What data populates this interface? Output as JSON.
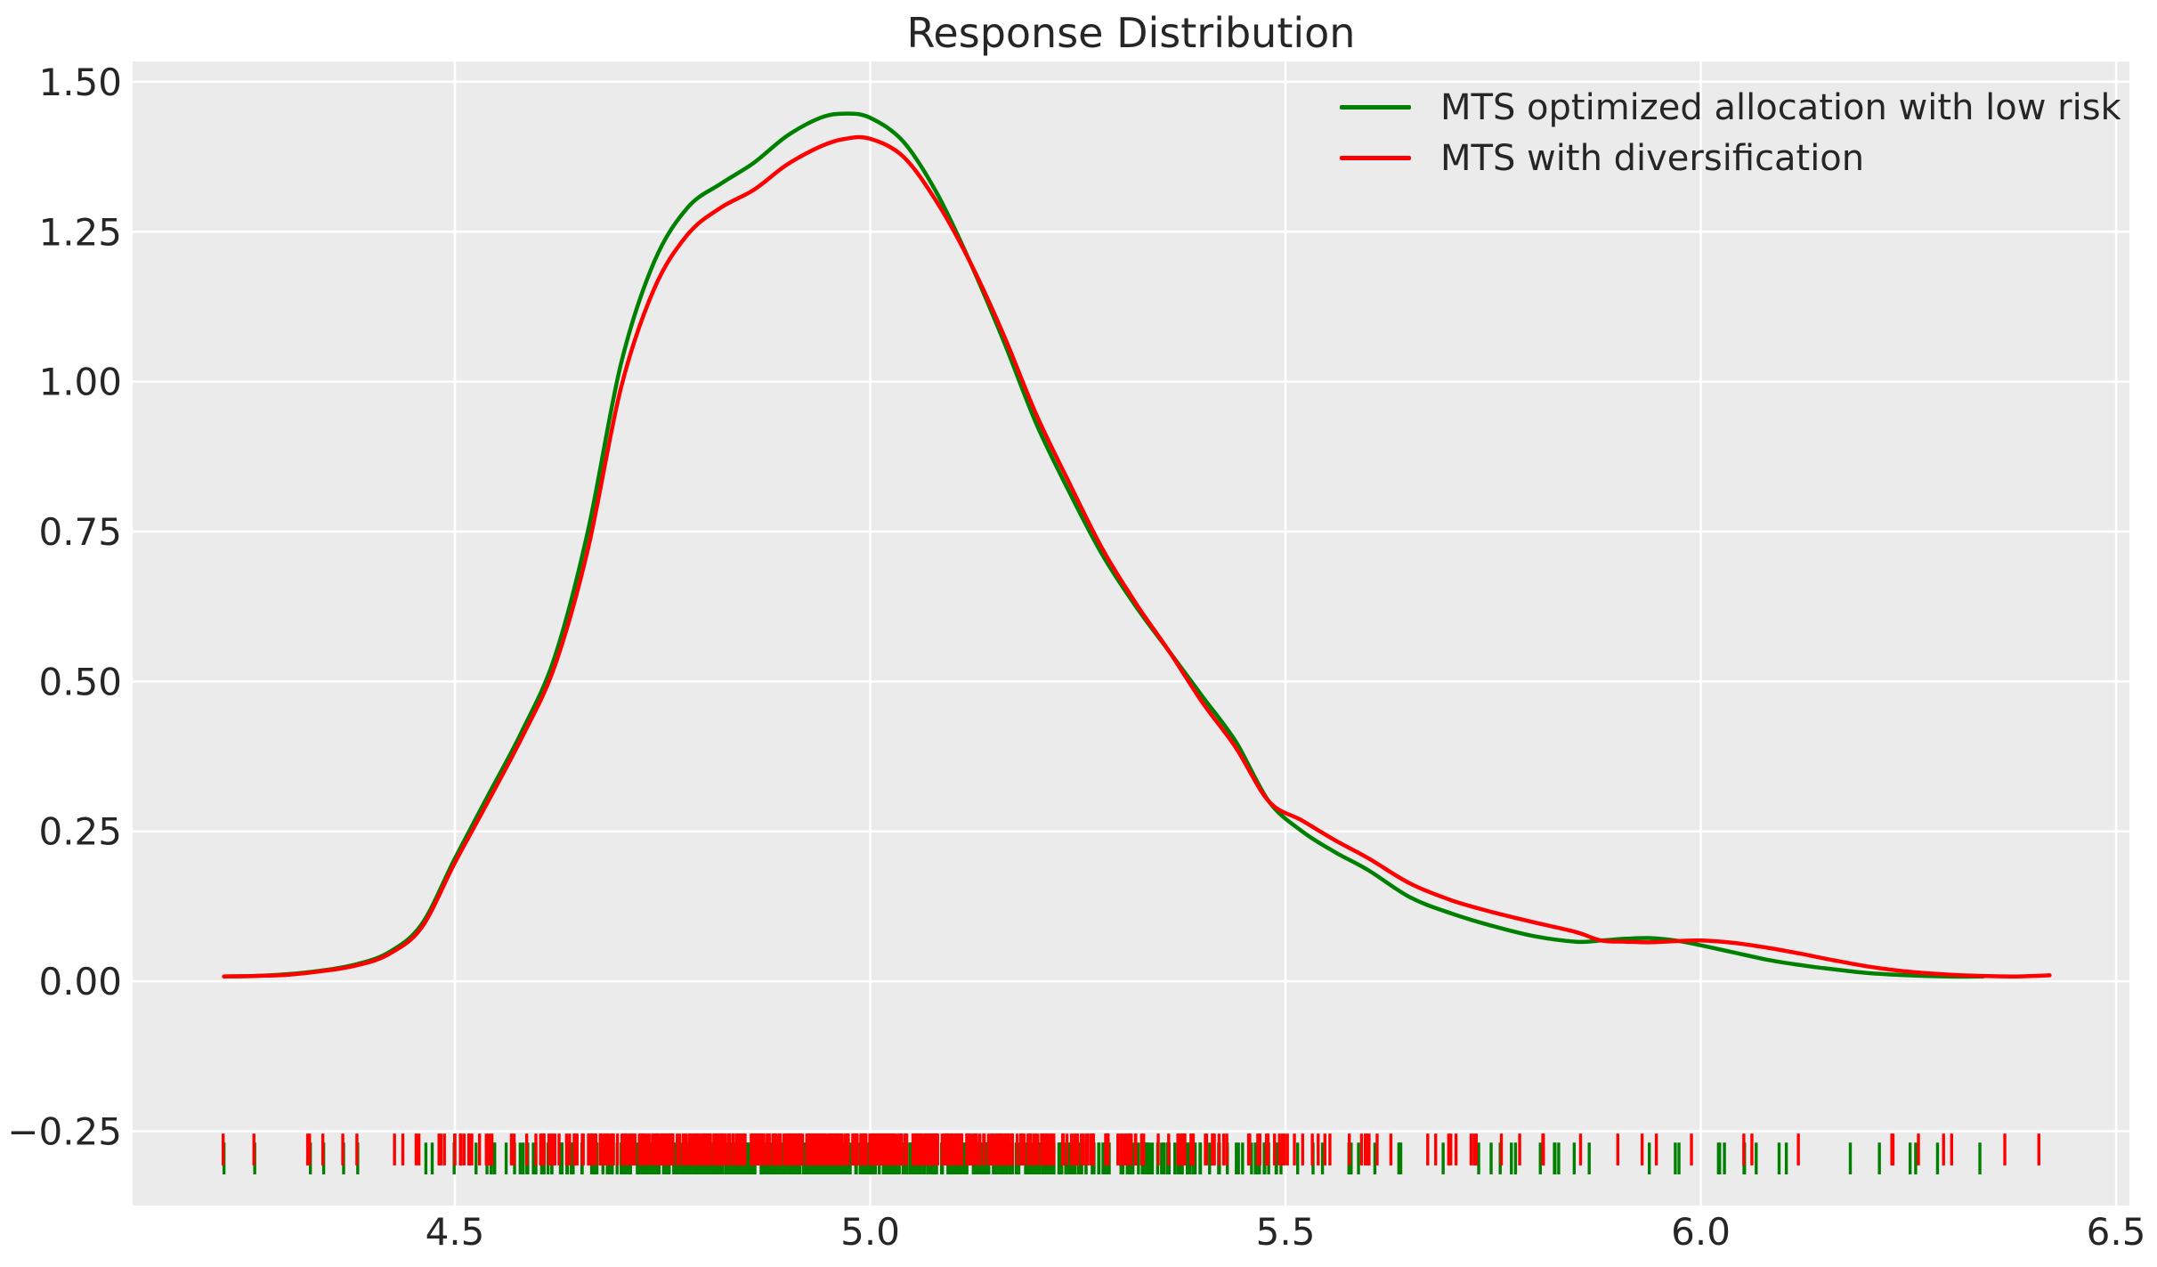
{
  "title": "Response Distribution",
  "colors": {
    "figure_bg": "#ffffff",
    "plot_bg": "#ebebeb",
    "grid": "#ffffff",
    "text": "#262626",
    "green": "#008000",
    "red": "#ff0000"
  },
  "legend": {
    "items": [
      {
        "label": "MTS optimized allocation with low risk",
        "color": "#008000"
      },
      {
        "label": "MTS with diversification",
        "color": "#ff0000"
      }
    ]
  },
  "chart_data": {
    "type": "line",
    "title": "Response Distribution",
    "xlabel": "",
    "ylabel": "",
    "grid": true,
    "legend_position": "upper right",
    "xlim": [
      4.112,
      6.516
    ],
    "ylim": [
      -0.374,
      1.534
    ],
    "x_ticks": [
      4.5,
      5.0,
      5.5,
      6.0,
      6.5
    ],
    "x_tick_labels": [
      "4.5",
      "5.0",
      "5.5",
      "6.0",
      "6.5"
    ],
    "y_ticks": [
      1.5,
      1.25,
      1.0,
      0.75,
      0.5,
      0.25,
      0.0,
      -0.25
    ],
    "y_tick_labels": [
      "1.50",
      "1.25",
      "1.00",
      "0.75",
      "0.50",
      "0.25",
      "0.00",
      "−0.25"
    ],
    "series": [
      {
        "id": "green",
        "name": "MTS optimized allocation with low risk",
        "color": "#008000",
        "peak": {
          "x": 4.97,
          "y": 1.447
        },
        "x": [
          4.222,
          4.26,
          4.3,
          4.34,
          4.38,
          4.42,
          4.46,
          4.5,
          4.54,
          4.58,
          4.62,
          4.66,
          4.7,
          4.74,
          4.78,
          4.82,
          4.86,
          4.9,
          4.94,
          4.97,
          5.0,
          5.04,
          5.08,
          5.12,
          5.16,
          5.2,
          5.24,
          5.28,
          5.32,
          5.36,
          5.4,
          5.44,
          5.48,
          5.52,
          5.56,
          5.6,
          5.65,
          5.7,
          5.75,
          5.8,
          5.85,
          5.88,
          5.91,
          5.94,
          5.97,
          6.0,
          6.04,
          6.08,
          6.12,
          6.16,
          6.2,
          6.25,
          6.3,
          6.34
        ],
        "y": [
          0.008,
          0.009,
          0.012,
          0.018,
          0.028,
          0.048,
          0.095,
          0.205,
          0.31,
          0.415,
          0.54,
          0.75,
          1.03,
          1.2,
          1.29,
          1.33,
          1.365,
          1.41,
          1.44,
          1.447,
          1.44,
          1.4,
          1.315,
          1.2,
          1.07,
          0.93,
          0.815,
          0.71,
          0.625,
          0.55,
          0.475,
          0.4,
          0.3,
          0.25,
          0.215,
          0.185,
          0.14,
          0.113,
          0.092,
          0.075,
          0.066,
          0.068,
          0.071,
          0.072,
          0.068,
          0.06,
          0.048,
          0.036,
          0.027,
          0.02,
          0.014,
          0.01,
          0.008,
          0.008
        ]
      },
      {
        "id": "red",
        "name": "MTS with diversification",
        "color": "#ff0000",
        "peak": {
          "x": 4.98,
          "y": 1.405
        },
        "x": [
          4.222,
          4.26,
          4.3,
          4.34,
          4.38,
          4.42,
          4.46,
          4.5,
          4.54,
          4.58,
          4.62,
          4.66,
          4.7,
          4.74,
          4.78,
          4.82,
          4.86,
          4.9,
          4.94,
          4.97,
          5.0,
          5.04,
          5.08,
          5.12,
          5.16,
          5.2,
          5.24,
          5.28,
          5.32,
          5.36,
          5.4,
          5.44,
          5.48,
          5.52,
          5.56,
          5.6,
          5.65,
          5.7,
          5.75,
          5.8,
          5.85,
          5.88,
          5.91,
          5.94,
          5.97,
          6.0,
          6.04,
          6.08,
          6.12,
          6.16,
          6.2,
          6.25,
          6.3,
          6.34,
          6.38,
          6.42
        ],
        "y": [
          0.008,
          0.009,
          0.011,
          0.017,
          0.026,
          0.045,
          0.09,
          0.198,
          0.3,
          0.405,
          0.525,
          0.72,
          0.99,
          1.155,
          1.245,
          1.29,
          1.32,
          1.362,
          1.392,
          1.405,
          1.405,
          1.375,
          1.3,
          1.2,
          1.08,
          0.945,
          0.83,
          0.72,
          0.63,
          0.55,
          0.465,
          0.39,
          0.3,
          0.268,
          0.235,
          0.205,
          0.163,
          0.135,
          0.115,
          0.098,
          0.082,
          0.068,
          0.066,
          0.065,
          0.067,
          0.068,
          0.064,
          0.056,
          0.046,
          0.035,
          0.025,
          0.016,
          0.011,
          0.009,
          0.008,
          0.01
        ]
      }
    ],
    "rug": {
      "note": "Observation tick marks below the curves; positions follow each KDE's density",
      "series": [
        {
          "id": "rug-green",
          "name": "MTS optimized allocation with low risk",
          "color": "#008000",
          "density_from": 0,
          "count": 540,
          "seed": 42,
          "range": [
            4.222,
            6.34
          ],
          "outliers": [
            4.222,
            4.259,
            4.326,
            4.342,
            4.366,
            4.383,
            6.18,
            6.215,
            6.252,
            6.285,
            6.336
          ],
          "y_top": -0.269,
          "y_bottom": -0.322
        },
        {
          "id": "rug-red",
          "name": "MTS with diversification",
          "color": "#ff0000",
          "density_from": 1,
          "count": 540,
          "seed": 99,
          "range": [
            4.222,
            6.41
          ],
          "outliers": [
            4.221,
            4.258,
            4.325,
            4.341,
            4.365,
            4.382,
            6.23,
            6.262,
            6.302,
            6.366,
            6.407
          ],
          "y_top": -0.254,
          "y_bottom": -0.307
        }
      ]
    }
  }
}
